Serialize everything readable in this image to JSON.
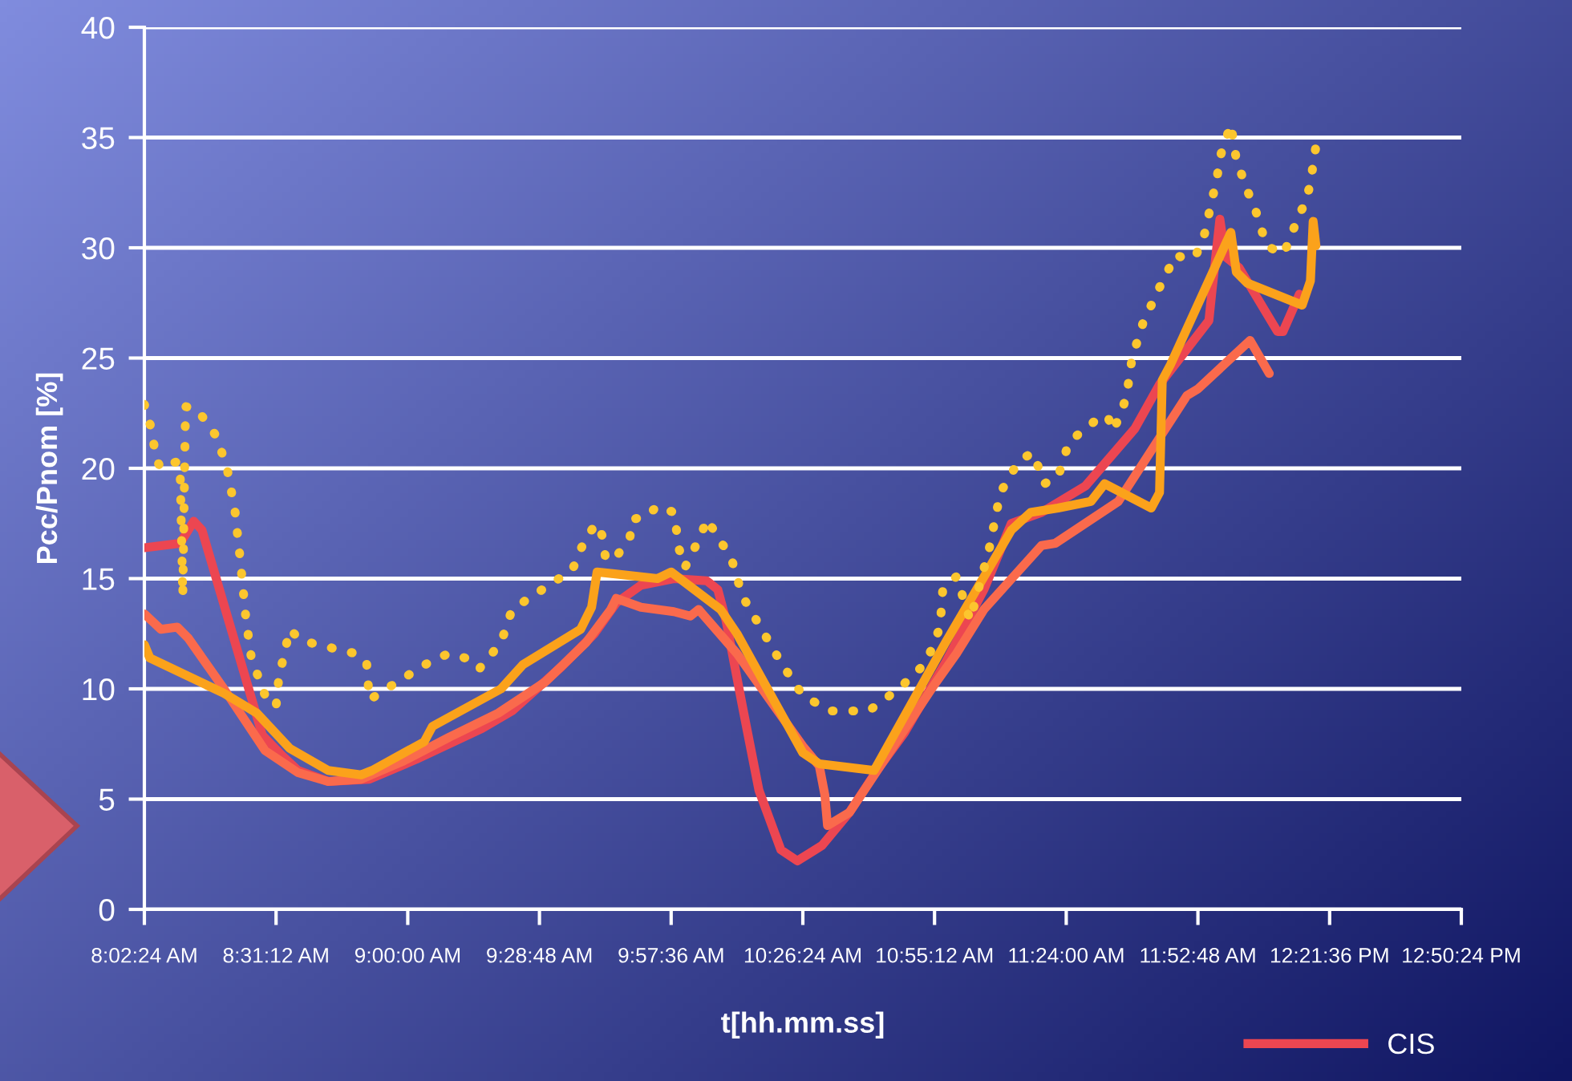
{
  "chart_data": {
    "type": "line",
    "xlabel": "t[hh.mm.ss]",
    "ylabel": "Pcc/Pnom [%]",
    "xlim": [
      8.04,
      12.84
    ],
    "xticks": [
      {
        "value": 8.04,
        "label": "8:02:24 AM"
      },
      {
        "value": 8.52,
        "label": "8:31:12 AM"
      },
      {
        "value": 9.0,
        "label": "9:00:00 AM"
      },
      {
        "value": 9.48,
        "label": "9:28:48 AM"
      },
      {
        "value": 9.96,
        "label": "9:57:36 AM"
      },
      {
        "value": 10.44,
        "label": "10:26:24 AM"
      },
      {
        "value": 10.92,
        "label": "10:55:12 AM"
      },
      {
        "value": 11.4,
        "label": "11:24:00 AM"
      },
      {
        "value": 11.88,
        "label": "11:52:48 AM"
      },
      {
        "value": 12.36,
        "label": "12:21:36 PM"
      },
      {
        "value": 12.84,
        "label": "12:50:24 PM"
      }
    ],
    "ylim": [
      0,
      40
    ],
    "yticks": [
      0,
      5,
      10,
      15,
      20,
      25,
      30,
      35,
      40
    ],
    "grid": "y",
    "legend": "bottom right",
    "series": [
      {
        "name": "CIS",
        "color": "#ec4651",
        "line_style": "solid",
        "x": [
          8.04,
          8.17,
          8.22,
          8.25,
          8.47,
          8.54,
          8.6,
          8.71,
          8.86,
          9.03,
          9.27,
          9.38,
          9.56,
          9.68,
          9.76,
          9.85,
          9.97,
          10.09,
          10.13,
          10.16,
          10.22,
          10.28,
          10.36,
          10.42,
          10.51,
          10.61,
          10.71,
          10.81,
          10.96,
          11.1,
          11.2,
          11.31,
          11.47,
          11.65,
          11.74,
          11.92,
          11.93,
          11.96,
          11.98,
          12.03,
          12.17,
          12.19,
          12.25
        ],
        "values": [
          16.4,
          16.6,
          17.6,
          17.2,
          7.9,
          7.0,
          6.3,
          5.8,
          5.9,
          6.8,
          8.2,
          9.0,
          11.0,
          12.5,
          13.9,
          14.7,
          15.0,
          14.9,
          14.5,
          13.1,
          9.2,
          5.4,
          2.7,
          2.2,
          2.9,
          4.4,
          6.3,
          8.0,
          11.2,
          14.5,
          17.5,
          18.0,
          19.2,
          21.8,
          23.8,
          26.7,
          27.9,
          31.3,
          29.6,
          29.1,
          26.2,
          26.2,
          27.9
        ]
      },
      {
        "color": "#fa6a4c",
        "line_style": "solid",
        "x": [
          8.04,
          8.1,
          8.16,
          8.2,
          8.33,
          8.48,
          8.6,
          8.71,
          8.83,
          8.98,
          9.15,
          9.33,
          9.5,
          9.65,
          9.74,
          9.76,
          9.85,
          9.97,
          10.03,
          10.06,
          10.2,
          10.32,
          10.44,
          10.5,
          10.52,
          10.53,
          10.61,
          10.92,
          11.0,
          11.1,
          11.31,
          11.36,
          11.59,
          11.84,
          11.88,
          12.07,
          12.14
        ],
        "values": [
          13.4,
          12.7,
          12.8,
          12.3,
          10.0,
          7.2,
          6.2,
          5.8,
          5.9,
          6.7,
          7.8,
          8.9,
          10.3,
          12.1,
          13.6,
          14.1,
          13.7,
          13.5,
          13.3,
          13.6,
          11.6,
          9.5,
          7.4,
          6.5,
          5.2,
          3.8,
          4.4,
          10.2,
          11.6,
          13.6,
          16.5,
          16.6,
          18.5,
          23.3,
          23.6,
          25.8,
          24.3
        ]
      },
      {
        "color": "#fba21b",
        "line_style": "solid",
        "x": [
          8.04,
          8.06,
          8.33,
          8.45,
          8.57,
          8.71,
          8.83,
          8.87,
          9.06,
          9.09,
          9.34,
          9.42,
          9.63,
          9.67,
          9.69,
          9.91,
          9.96,
          10.14,
          10.2,
          10.44,
          10.5,
          10.7,
          10.96,
          11.2,
          11.27,
          11.37,
          11.49,
          11.54,
          11.71,
          11.74,
          11.75,
          11.78,
          12.0,
          12.02,
          12.06,
          12.26,
          12.29,
          12.3,
          12.31
        ],
        "values": [
          12.0,
          11.4,
          9.8,
          8.9,
          7.3,
          6.3,
          6.1,
          6.3,
          7.6,
          8.3,
          10.0,
          11.1,
          12.7,
          13.7,
          15.3,
          15.0,
          15.3,
          13.6,
          12.5,
          7.1,
          6.6,
          6.3,
          12.1,
          17.2,
          18.0,
          18.2,
          18.5,
          19.3,
          18.2,
          18.9,
          24.0,
          24.7,
          30.7,
          28.9,
          28.4,
          27.4,
          28.5,
          31.2,
          30.1
        ]
      },
      {
        "color": "#fcc62e",
        "line_style": "dotted",
        "x": [
          8.04,
          8.07,
          8.08,
          8.1,
          8.13,
          8.16,
          8.17,
          8.18,
          8.19,
          8.23,
          8.26,
          8.3,
          8.34,
          8.37,
          8.39,
          8.41,
          8.43,
          8.48,
          8.52,
          8.53,
          8.57,
          8.61,
          8.74,
          8.81,
          8.85,
          8.86,
          8.91,
          8.96,
          9.09,
          9.15,
          9.21,
          9.26,
          9.34,
          9.38,
          9.49,
          9.6,
          9.65,
          9.69,
          9.71,
          9.72,
          9.75,
          9.81,
          9.82,
          9.87,
          9.91,
          9.97,
          9.99,
          10.01,
          10.07,
          10.09,
          10.13,
          10.18,
          10.22,
          10.29,
          10.36,
          10.44,
          10.54,
          10.68,
          10.79,
          10.89,
          10.94,
          10.95,
          11.0,
          11.05,
          11.12,
          11.16,
          11.23,
          11.28,
          11.32,
          11.37,
          11.41,
          11.51,
          11.55,
          11.57,
          11.6,
          11.62,
          11.64,
          11.68,
          11.74,
          11.8,
          11.83,
          11.87,
          11.9,
          11.93,
          11.95,
          11.96,
          12.0,
          12.02,
          12.06,
          12.09,
          12.11,
          12.13,
          12.19,
          12.22,
          12.24,
          12.27,
          12.29,
          12.3,
          12.31
        ],
        "values": [
          22.9,
          21.6,
          20.5,
          20.0,
          20.2,
          20.3,
          20.1,
          14.2,
          22.8,
          22.7,
          22.2,
          21.5,
          20.1,
          18.1,
          15.8,
          13.2,
          11.4,
          9.7,
          9.2,
          10.5,
          12.7,
          12.2,
          11.8,
          11.6,
          11.2,
          9.5,
          9.9,
          10.3,
          11.3,
          11.6,
          11.4,
          10.9,
          12.1,
          13.6,
          14.5,
          15.4,
          16.9,
          17.5,
          16.9,
          16.0,
          15.8,
          16.9,
          17.7,
          17.8,
          18.3,
          18.0,
          16.3,
          15.5,
          17.0,
          17.7,
          16.9,
          15.9,
          14.2,
          12.7,
          11.2,
          9.7,
          9.0,
          9.0,
          10.0,
          11.2,
          12.8,
          14.5,
          15.1,
          13.1,
          16.4,
          18.9,
          20.4,
          20.7,
          19.3,
          19.6,
          21.2,
          22.2,
          22.4,
          21.7,
          22.5,
          23.3,
          25.0,
          26.6,
          28.2,
          29.7,
          29.5,
          29.6,
          30.4,
          32.1,
          33.2,
          34.1,
          35.6,
          34.0,
          32.6,
          31.7,
          30.9,
          30.1,
          29.7,
          30.5,
          31.3,
          32.0,
          32.9,
          33.8,
          34.6
        ]
      }
    ]
  }
}
